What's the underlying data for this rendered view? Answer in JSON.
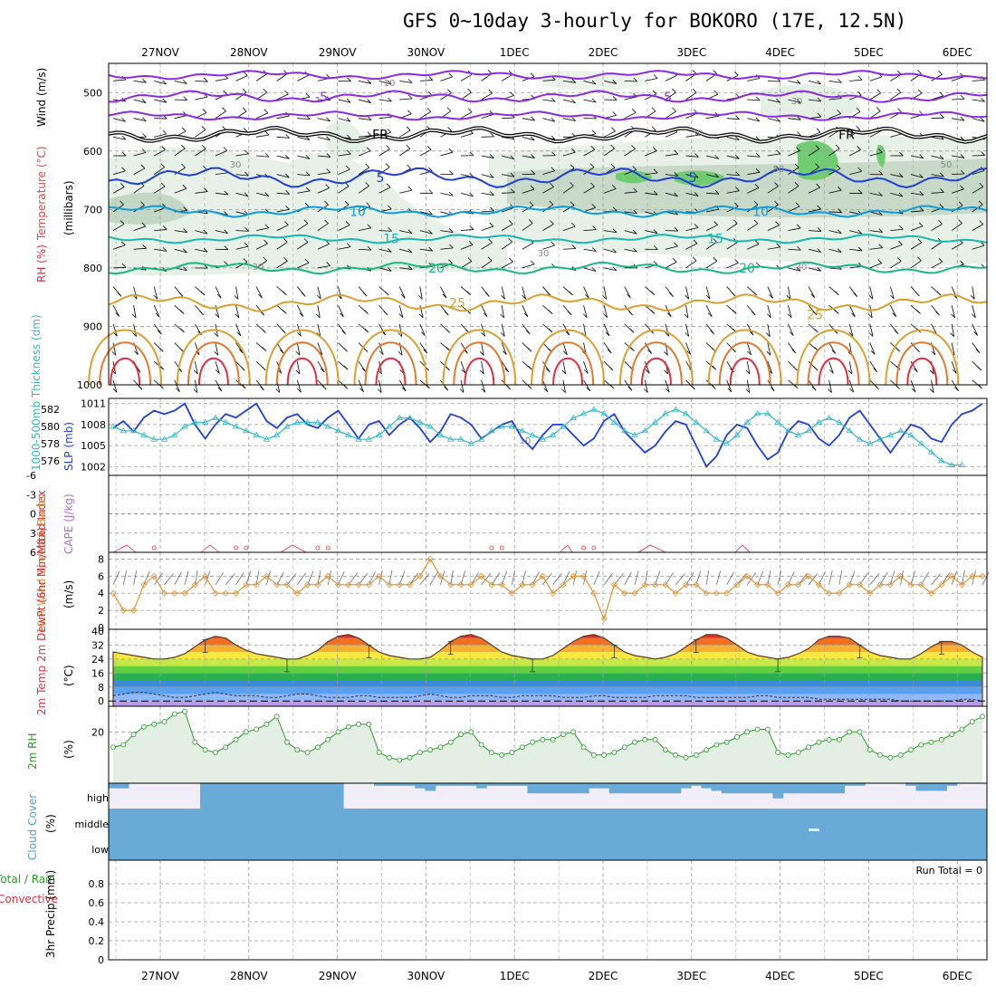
{
  "title": "GFS 0~10day 3-hourly for BOKORO (17E, 12.5N)",
  "dates": [
    "27NOV",
    "28NOV",
    "29NOV",
    "30NOV",
    "1DEC",
    "2DEC",
    "3DEC",
    "4DEC",
    "5DEC",
    "6DEC"
  ],
  "run_total_text": "Run Total = 0",
  "colors": {
    "purple": "#8a2be2",
    "black": "#000000",
    "blue": "#1f3fd6",
    "cyan": "#0a9de0",
    "teal": "#16b8b0",
    "green_c": "#17b886",
    "orange": "#d9a030",
    "orange2": "#e07a30",
    "red": "#e03040",
    "slp": "#1f3fd6",
    "thick": "#30b8c8",
    "wind": "#e09030",
    "rh": "#2a9a2a",
    "cloud": "#6aaad8",
    "cloud_bg": "#f2eef8"
  },
  "chart_data": [
    {
      "panel": "upper-air",
      "type": "contour",
      "ylabel_parts": [
        "RH (%)",
        "Temperature (°C)",
        "Wind (m/s)"
      ],
      "yaxis_title": "(millibars)",
      "ylim": [
        1000,
        450
      ],
      "yticks": [
        500,
        600,
        700,
        800,
        900,
        1000
      ],
      "rh_contour_labels": [
        "10",
        "30",
        "50"
      ],
      "temperature_labels": [
        "-5",
        "FR",
        "5",
        "10",
        "15",
        "20",
        "25"
      ],
      "temperature_contours": [
        {
          "label": "-5",
          "pressure_mb": 507
        },
        {
          "label": "FR",
          "pressure_mb": 572
        },
        {
          "label": "5",
          "pressure_mb": 645
        },
        {
          "label": "10",
          "pressure_mb": 703
        },
        {
          "label": "15",
          "pressure_mb": 750
        },
        {
          "label": "20",
          "pressure_mb": 800
        },
        {
          "label": "25",
          "pressure_mb": 860
        }
      ]
    },
    {
      "panel": "slp-thickness",
      "type": "line",
      "ylabel_left": "1000-500mb Thickness (dm)",
      "ylabel_right": "SLP (mb)",
      "left_ticks": [
        "582",
        "580",
        "578",
        "576"
      ],
      "right_ticks": [
        "1011",
        "1008",
        "1005",
        "1002"
      ],
      "series": [
        {
          "name": "SLP (mb)",
          "values": [
            1007.5,
            1008.5,
            1007,
            1009,
            1010,
            1009.5,
            1010,
            1011,
            1008,
            1006,
            1008,
            1009.5,
            1009,
            1010,
            1011,
            1008.5,
            1007.5,
            1009,
            1009.5,
            1008,
            1007.5,
            1009,
            1010,
            1008,
            1006,
            1008,
            1008.5,
            1006.5,
            1008,
            1009,
            1007.5,
            1005.5,
            1007,
            1009.5,
            1009,
            1008,
            1006,
            1007,
            1008,
            1008.5,
            1006,
            1004.5,
            1006.5,
            1008,
            1008,
            1006.5,
            1005,
            1006,
            1008.5,
            1009.5,
            1007,
            1005.5,
            1004,
            1005,
            1007,
            1008.5,
            1008,
            1005,
            1002,
            1003.5,
            1006.5,
            1008,
            1007.5,
            1005,
            1003,
            1004,
            1007,
            1008.5,
            1008,
            1006,
            1005,
            1006.5,
            1009,
            1010,
            1008,
            1006,
            1004,
            1006,
            1008,
            1007.5,
            1006,
            1005.5,
            1008,
            1009.5,
            1010,
            1011
          ]
        },
        {
          "name": "Thickness (dm)",
          "values": [
            580,
            579.5,
            579.5,
            579,
            578.5,
            578.5,
            579,
            580,
            580.5,
            580.5,
            581,
            580.5,
            580,
            579.5,
            579,
            578.5,
            579,
            580,
            580.5,
            580.5,
            580.5,
            580,
            579.5,
            579,
            578.5,
            578.5,
            579,
            580,
            581,
            581,
            580.5,
            580,
            579,
            578.5,
            578.5,
            578,
            578.5,
            579.5,
            580,
            580,
            579.5,
            579,
            578.5,
            579,
            580,
            581,
            581.5,
            582,
            581.5,
            580.5,
            579.5,
            579,
            579.5,
            580.5,
            581.5,
            582,
            581.5,
            580.5,
            579.5,
            578.5,
            578,
            579,
            580.5,
            581.5,
            581.5,
            580.5,
            579.5,
            579,
            579.5,
            580.5,
            581,
            580.5,
            579.5,
            578.5,
            578,
            578.5,
            579,
            579.5,
            579,
            578,
            577,
            576,
            575.5,
            575.5
          ]
        }
      ]
    },
    {
      "panel": "lifted-index",
      "type": "line",
      "ylabel_left": "Lifted Index",
      "ylabel_right": "CAPE (J/kg)",
      "ticks": [
        "-6",
        "-3",
        "0",
        "3",
        "6"
      ],
      "ylim": [
        -6,
        6
      ]
    },
    {
      "panel": "wind-10m",
      "type": "line",
      "ylabel_left": "10m Wind Speed & Barbs",
      "unit": "(m/s)",
      "ticks": [
        "0",
        "2",
        "4",
        "6",
        "8"
      ],
      "ylim": [
        0,
        9
      ],
      "series": [
        {
          "name": "10m Wind Speed",
          "values": [
            4,
            2,
            2,
            5,
            6,
            4,
            4,
            4,
            5,
            6,
            4,
            4,
            4,
            5,
            5,
            6,
            5,
            5,
            4,
            5,
            5,
            6,
            5,
            5,
            5,
            5,
            6,
            5,
            5,
            5,
            6,
            8,
            6,
            5,
            5,
            5,
            6,
            5,
            5,
            4,
            5,
            5,
            6,
            4,
            5,
            6,
            6,
            4,
            1,
            5,
            4,
            4,
            5,
            5,
            5,
            4,
            5,
            5,
            4,
            4,
            4,
            5,
            6,
            5,
            5,
            4,
            5,
            5,
            6,
            5,
            4,
            4,
            5,
            5,
            4,
            5,
            5,
            6,
            5,
            5,
            4,
            5,
            6,
            5,
            6,
            6
          ]
        }
      ]
    },
    {
      "panel": "temp-2m",
      "type": "area",
      "ylabel_left": "2m Temp 2m DewPt (6hr Min/Max)",
      "unit": "(°C)",
      "ticks": [
        "0",
        "8",
        "16",
        "24",
        "32",
        "40"
      ],
      "ylim": [
        -3,
        41
      ],
      "series": [
        {
          "name": "2m Temp",
          "values": [
            28,
            27,
            26,
            25,
            24,
            24,
            25,
            27,
            31,
            35,
            37,
            36,
            32,
            29,
            27,
            26,
            25,
            24,
            24,
            26,
            29,
            34,
            37,
            38,
            36,
            32,
            28,
            26,
            25,
            24,
            24,
            25,
            29,
            34,
            37,
            38,
            36,
            32,
            28,
            26,
            25,
            24,
            24,
            26,
            30,
            34,
            37,
            38,
            36,
            32,
            28,
            26,
            25,
            24,
            25,
            27,
            31,
            35,
            38,
            38,
            36,
            32,
            28,
            26,
            25,
            24,
            25,
            27,
            30,
            35,
            37,
            37,
            36,
            32,
            28,
            26,
            25,
            24,
            24,
            27,
            31,
            34,
            34,
            32,
            28,
            25
          ]
        },
        {
          "name": "2m DewPt",
          "values": [
            3,
            4,
            5,
            5,
            4,
            3,
            2,
            2,
            3,
            4,
            5,
            4,
            3,
            3,
            3,
            2,
            2,
            3,
            4,
            4,
            3,
            2,
            2,
            2,
            3,
            3,
            2,
            2,
            2,
            2,
            3,
            4,
            3,
            2,
            2,
            3,
            3,
            3,
            2,
            2,
            3,
            3,
            3,
            3,
            2,
            2,
            2,
            3,
            3,
            2,
            2,
            2,
            2,
            3,
            3,
            3,
            3,
            2,
            2,
            2,
            2,
            2,
            2,
            3,
            3,
            2,
            2,
            2,
            2,
            1,
            1,
            1,
            1,
            1,
            1,
            1,
            1,
            0,
            0,
            0,
            0,
            0,
            0,
            1,
            1,
            0
          ]
        }
      ]
    },
    {
      "panel": "rh-2m",
      "type": "area",
      "ylabel_left": "2m RH",
      "unit": "(%)",
      "ticks": [
        "20"
      ],
      "ylim": [
        0,
        30
      ],
      "series": [
        {
          "name": "2m RH",
          "values": [
            14,
            15,
            19,
            22,
            23,
            24,
            27,
            28,
            16,
            13,
            12,
            14,
            17,
            20,
            21,
            23,
            26,
            16,
            13,
            12,
            14,
            17,
            20,
            22,
            23,
            23,
            12,
            10,
            9,
            10,
            12,
            13,
            14,
            16,
            19,
            20,
            15,
            12,
            11,
            12,
            14,
            16,
            17,
            17,
            19,
            20,
            14,
            11,
            11,
            12,
            14,
            16,
            17,
            17,
            13,
            11,
            10,
            11,
            13,
            15,
            16,
            18,
            20,
            21,
            21,
            12,
            11,
            12,
            14,
            16,
            17,
            17,
            20,
            20,
            13,
            11,
            10,
            11,
            13,
            15,
            16,
            17,
            19,
            21,
            24,
            26
          ]
        }
      ]
    },
    {
      "panel": "cloud-cover",
      "type": "bar",
      "ylabel_left": "Cloud Cover",
      "unit": "(%)",
      "levels": [
        "high",
        "middle",
        "low"
      ],
      "series": [
        {
          "name": "high",
          "values": [
            20,
            20,
            0,
            0,
            0,
            0,
            0,
            0,
            0,
            100,
            100,
            100,
            100,
            100,
            100,
            100,
            100,
            100,
            100,
            100,
            100,
            100,
            100,
            0,
            0,
            0,
            10,
            10,
            10,
            10,
            20,
            30,
            10,
            10,
            10,
            10,
            20,
            10,
            10,
            10,
            10,
            40,
            40,
            40,
            40,
            40,
            40,
            20,
            20,
            40,
            40,
            40,
            40,
            40,
            40,
            40,
            20,
            10,
            20,
            30,
            40,
            40,
            40,
            40,
            40,
            60,
            40,
            40,
            40,
            40,
            40,
            40,
            10,
            10,
            0,
            0,
            0,
            0,
            10,
            30,
            30,
            30,
            10,
            0,
            0,
            0
          ]
        },
        {
          "name": "middle",
          "values": [
            100,
            100,
            100,
            100,
            100,
            100,
            100,
            100,
            100,
            100,
            100,
            100,
            100,
            100,
            100,
            100,
            100,
            100,
            100,
            100,
            100,
            100,
            100,
            100,
            100,
            100,
            100,
            100,
            100,
            100,
            100,
            100,
            100,
            100,
            100,
            100,
            100,
            100,
            100,
            100,
            100,
            100,
            100,
            100,
            100,
            100,
            100,
            100,
            100,
            100,
            100,
            100,
            100,
            100,
            100,
            100,
            100,
            100,
            100,
            100,
            100,
            100,
            100,
            100,
            100,
            100,
            100,
            100,
            100,
            100,
            100,
            100,
            100,
            100,
            100,
            100,
            100,
            100,
            100,
            100,
            100,
            100,
            100,
            100,
            100,
            100
          ]
        }
      ]
    },
    {
      "panel": "precip",
      "type": "bar",
      "ylabel_left": "Total / Rain Convective",
      "ylabel_right": "3hr Precip (mm)",
      "ticks": [
        "0",
        "0.2",
        "0.4",
        "0.6",
        "0.8"
      ],
      "ylim": [
        0,
        1
      ],
      "series": [
        {
          "name": "3hr Precip (mm)",
          "values": [
            0
          ]
        }
      ]
    }
  ]
}
